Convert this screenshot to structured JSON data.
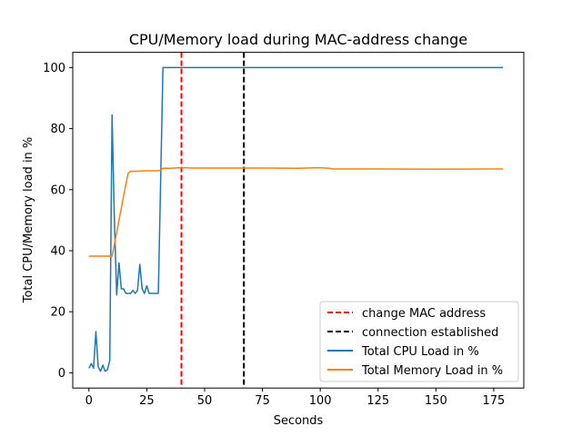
{
  "chart_data": {
    "type": "line",
    "title": "CPU/Memory load during MAC-address change",
    "xlabel": "Seconds",
    "ylabel": "Total CPU/Memory load in %",
    "xlim": [
      -7,
      188
    ],
    "ylim": [
      -5,
      105
    ],
    "xticks": [
      0,
      25,
      50,
      75,
      100,
      125,
      150,
      175
    ],
    "yticks": [
      0,
      20,
      40,
      60,
      80,
      100
    ],
    "grid": false,
    "legend_position": "lower right",
    "series": [
      {
        "name": "Total CPU Load in %",
        "color": "#1f77b4",
        "x": [
          0,
          1,
          2,
          3,
          4,
          5,
          6,
          7,
          8,
          9,
          10,
          11,
          12,
          13,
          14,
          15,
          16,
          17,
          18,
          19,
          20,
          21,
          22,
          23,
          24,
          25,
          26,
          27,
          28,
          29,
          30,
          31,
          32,
          33,
          34,
          35,
          40,
          50,
          75,
          100,
          125,
          150,
          179
        ],
        "y": [
          1.5,
          3,
          1.5,
          13.5,
          2,
          0.5,
          2.5,
          0.5,
          1,
          4,
          84.5,
          50,
          25.5,
          36,
          27.5,
          27.5,
          26,
          26,
          26,
          27,
          26,
          27,
          35.5,
          27.5,
          26,
          28.5,
          26,
          26,
          26,
          26,
          26,
          63,
          100,
          100,
          100,
          100,
          100,
          100,
          100,
          100,
          100,
          100,
          100
        ]
      },
      {
        "name": "Total Memory Load in %",
        "color": "#ff7f0e",
        "x": [
          0,
          10,
          12,
          14,
          16,
          17,
          18,
          20,
          25,
          30,
          31,
          32,
          35,
          40,
          45,
          50,
          75,
          90,
          100,
          104,
          105,
          125,
          150,
          179
        ],
        "y": [
          38.2,
          38.2,
          46,
          54,
          62,
          65.5,
          66,
          66,
          66.2,
          66.2,
          66.4,
          67,
          67,
          67.2,
          67.1,
          67.1,
          67.1,
          67,
          67.2,
          67,
          66.8,
          66.8,
          66.7,
          66.8
        ]
      }
    ],
    "vlines": [
      {
        "name": "change MAC address",
        "x": 40,
        "color": "#ff0000"
      },
      {
        "name": "connection established",
        "x": 67,
        "color": "#000000"
      }
    ],
    "legend": [
      {
        "label": "change MAC address",
        "style": "dashed",
        "color": "#ff0000"
      },
      {
        "label": "connection established",
        "style": "dashed",
        "color": "#000000"
      },
      {
        "label": "Total CPU Load in %",
        "style": "solid",
        "color": "#1f77b4"
      },
      {
        "label": "Total Memory Load in %",
        "style": "solid",
        "color": "#ff7f0e"
      }
    ]
  }
}
